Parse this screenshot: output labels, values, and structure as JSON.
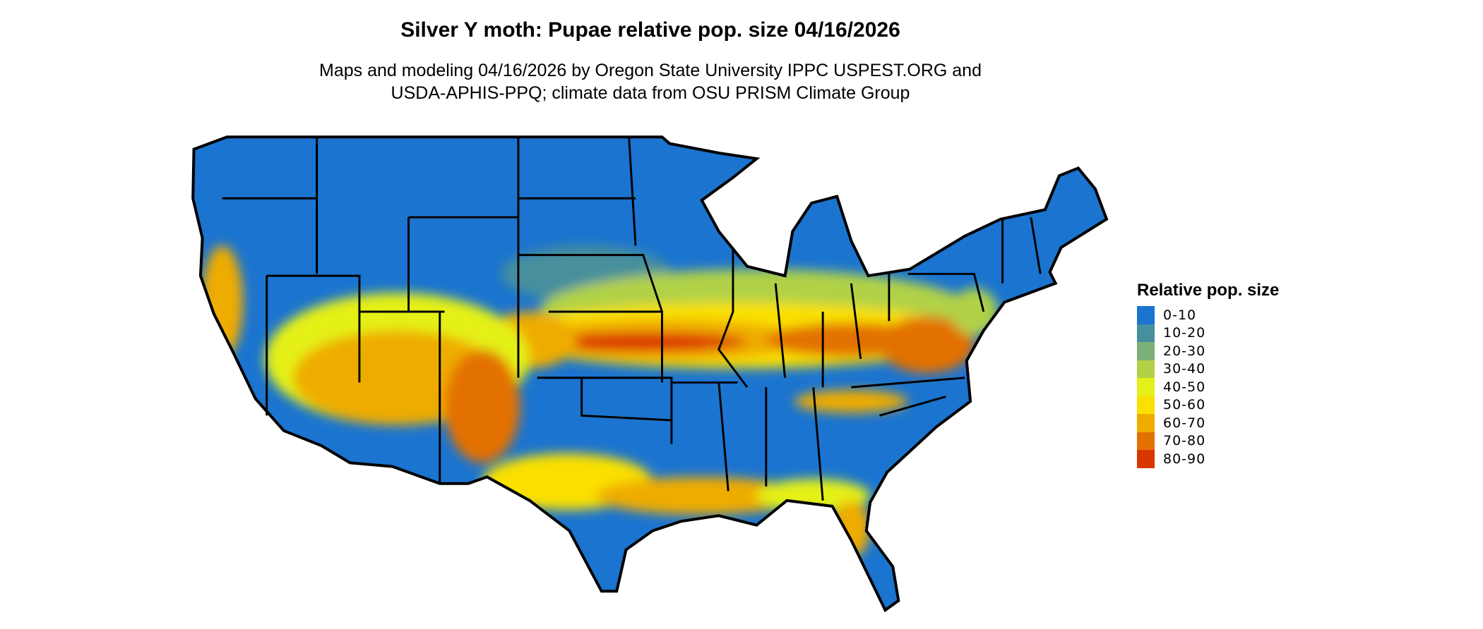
{
  "title": "Silver Y moth: Pupae relative pop. size 04/16/2026",
  "subtitle_line1": "Maps and modeling 04/16/2026 by Oregon State University IPPC USPEST.ORG and",
  "subtitle_line2": "USDA-APHIS-PPQ; climate data from OSU PRISM Climate Group",
  "legend": {
    "title": "Relative pop. size",
    "items": [
      {
        "label": "0-10",
        "color": "#1b74cf"
      },
      {
        "label": "10-20",
        "color": "#468f9c"
      },
      {
        "label": "20-30",
        "color": "#7db077"
      },
      {
        "label": "30-40",
        "color": "#b1d147"
      },
      {
        "label": "40-50",
        "color": "#e4f018"
      },
      {
        "label": "50-60",
        "color": "#f9e000"
      },
      {
        "label": "60-70",
        "color": "#efac00"
      },
      {
        "label": "70-80",
        "color": "#e37100"
      },
      {
        "label": "80-90",
        "color": "#db3600"
      }
    ]
  },
  "map": {
    "region": "Contiguous United States",
    "state_borders": true,
    "border_color": "#000000"
  }
}
